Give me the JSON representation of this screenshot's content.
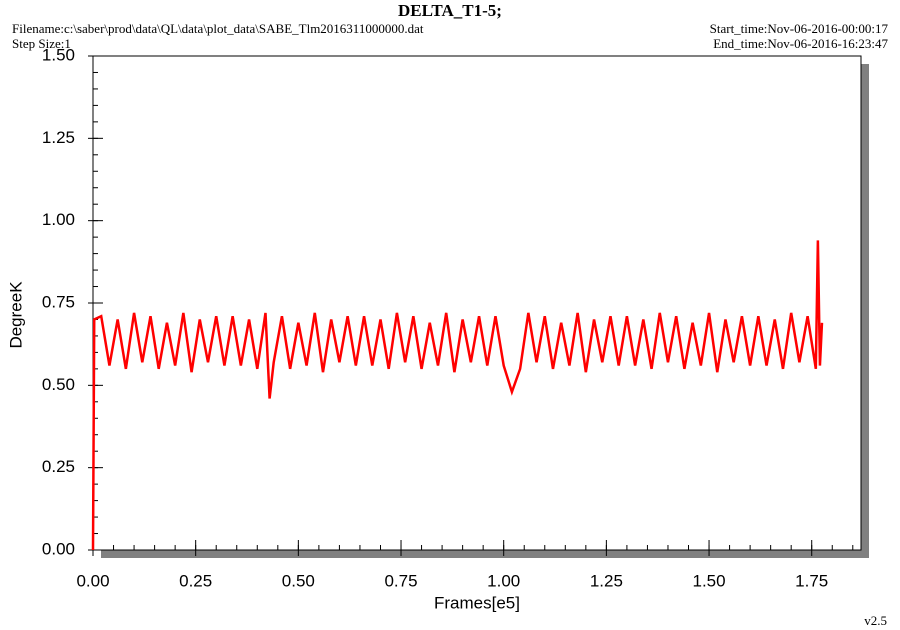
{
  "chart_data": {
    "type": "line",
    "title": "DELTA_T1-5;",
    "filename": "Filename:c:\\saber\\prod\\data\\QL\\data\\plot_data\\SABE_Tlm2016311000000.dat",
    "step_size": "Step Size:1",
    "start_time": "Start_time:Nov-06-2016-00:00:17",
    "end_time": "End_time:Nov-06-2016-16:23:47",
    "version": "v2.5",
    "x_label": "Frames[e5]",
    "y_label": "DegreeK",
    "xlim": [
      0,
      1.87
    ],
    "ylim": [
      0,
      1.5
    ],
    "xticks": [
      {
        "value": 0,
        "label": "0.00"
      },
      {
        "value": 0.25,
        "label": "0.25"
      },
      {
        "value": 0.5,
        "label": "0.50"
      },
      {
        "value": 0.75,
        "label": "0.75"
      },
      {
        "value": 1,
        "label": "1.00"
      },
      {
        "value": 1.25,
        "label": "1.25"
      },
      {
        "value": 1.5,
        "label": "1.50"
      },
      {
        "value": 1.75,
        "label": "1.75"
      }
    ],
    "yticks": [
      {
        "value": 0,
        "label": "0.00"
      },
      {
        "value": 0.25,
        "label": "0.25"
      },
      {
        "value": 0.5,
        "label": "0.50"
      },
      {
        "value": 0.75,
        "label": "0.75"
      },
      {
        "value": 1,
        "label": "1.00"
      },
      {
        "value": 1.25,
        "label": "1.25"
      },
      {
        "value": 1.5,
        "label": "1.50"
      }
    ],
    "minor_tick_step": 0.05,
    "color": "#ff0000",
    "x": [
      0,
      0.003,
      0.02,
      0.04,
      0.06,
      0.08,
      0.1,
      0.12,
      0.14,
      0.16,
      0.18,
      0.2,
      0.22,
      0.24,
      0.26,
      0.28,
      0.3,
      0.32,
      0.34,
      0.36,
      0.38,
      0.4,
      0.42,
      0.43,
      0.44,
      0.46,
      0.48,
      0.5,
      0.52,
      0.54,
      0.56,
      0.58,
      0.6,
      0.62,
      0.64,
      0.66,
      0.68,
      0.7,
      0.72,
      0.74,
      0.76,
      0.78,
      0.8,
      0.82,
      0.84,
      0.86,
      0.88,
      0.9,
      0.92,
      0.94,
      0.96,
      0.98,
      1,
      1.02,
      1.04,
      1.06,
      1.08,
      1.1,
      1.12,
      1.14,
      1.16,
      1.18,
      1.2,
      1.22,
      1.24,
      1.26,
      1.28,
      1.3,
      1.32,
      1.34,
      1.36,
      1.38,
      1.4,
      1.42,
      1.44,
      1.46,
      1.48,
      1.5,
      1.52,
      1.54,
      1.56,
      1.58,
      1.6,
      1.62,
      1.64,
      1.66,
      1.68,
      1.7,
      1.72,
      1.74,
      1.76,
      1.765,
      1.77,
      1.775
    ],
    "values": [
      0,
      0.7,
      0.71,
      0.56,
      0.7,
      0.55,
      0.72,
      0.57,
      0.71,
      0.55,
      0.69,
      0.56,
      0.72,
      0.54,
      0.7,
      0.57,
      0.71,
      0.56,
      0.71,
      0.56,
      0.7,
      0.55,
      0.72,
      0.46,
      0.57,
      0.71,
      0.55,
      0.69,
      0.56,
      0.72,
      0.54,
      0.7,
      0.57,
      0.71,
      0.56,
      0.71,
      0.56,
      0.7,
      0.55,
      0.72,
      0.57,
      0.71,
      0.55,
      0.69,
      0.56,
      0.72,
      0.54,
      0.7,
      0.57,
      0.71,
      0.56,
      0.71,
      0.56,
      0.48,
      0.55,
      0.72,
      0.57,
      0.71,
      0.55,
      0.69,
      0.56,
      0.72,
      0.54,
      0.7,
      0.57,
      0.71,
      0.56,
      0.71,
      0.56,
      0.7,
      0.55,
      0.72,
      0.57,
      0.71,
      0.55,
      0.69,
      0.56,
      0.72,
      0.54,
      0.7,
      0.57,
      0.71,
      0.56,
      0.71,
      0.56,
      0.7,
      0.55,
      0.72,
      0.57,
      0.71,
      0.55,
      0.94,
      0.56,
      0.69
    ]
  }
}
